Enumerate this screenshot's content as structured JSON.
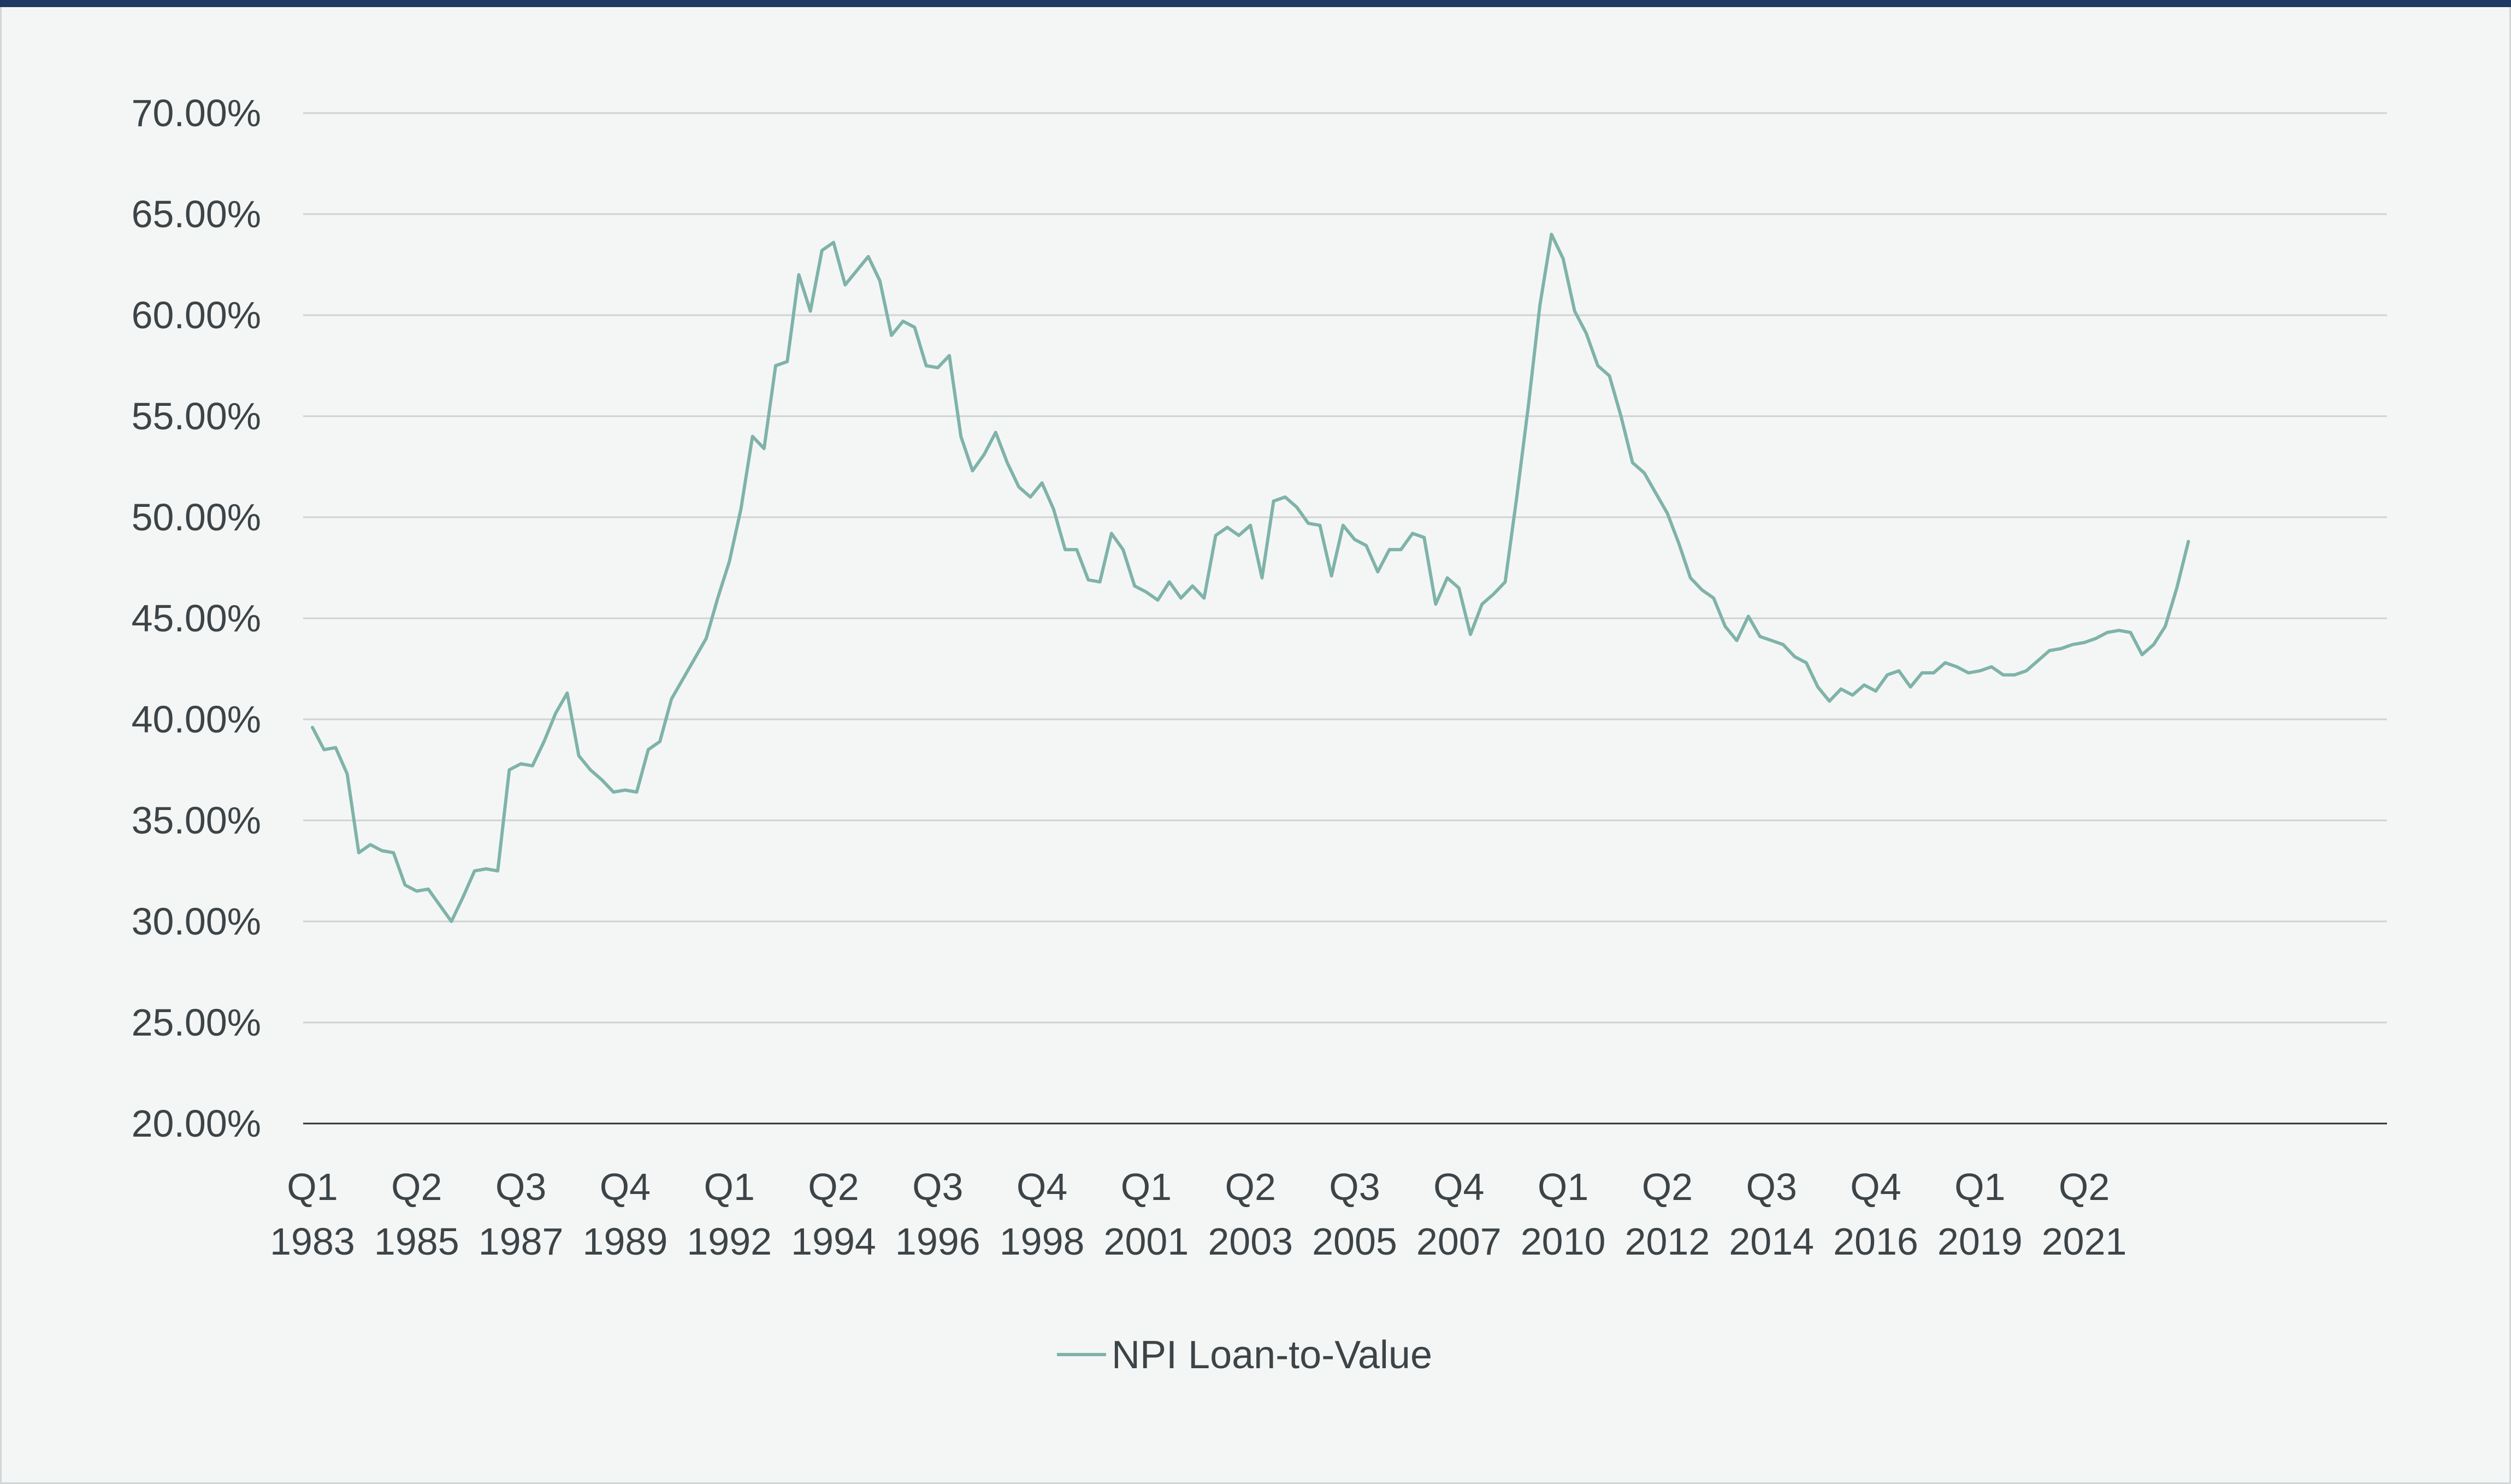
{
  "colors": {
    "accent_bar": "#1f3864",
    "series_line": "#7fb3a9",
    "grid": "#cfd3d3",
    "axis": "#2f3436",
    "text": "#3d4447",
    "background": "#f4f6f5"
  },
  "chart_data": {
    "type": "line",
    "title": "",
    "xlabel": "",
    "ylabel": "",
    "ylim": [
      20,
      70
    ],
    "y_ticks": [
      "20.00%",
      "25.00%",
      "30.00%",
      "35.00%",
      "40.00%",
      "45.00%",
      "50.00%",
      "55.00%",
      "60.00%",
      "65.00%",
      "70.00%"
    ],
    "x_tick_labels": [
      [
        "Q1",
        "1983"
      ],
      [
        "Q2",
        "1985"
      ],
      [
        "Q3",
        "1987"
      ],
      [
        "Q4",
        "1989"
      ],
      [
        "Q1",
        "1992"
      ],
      [
        "Q2",
        "1994"
      ],
      [
        "Q3",
        "1996"
      ],
      [
        "Q4",
        "1998"
      ],
      [
        "Q1",
        "2001"
      ],
      [
        "Q2",
        "2003"
      ],
      [
        "Q3",
        "2005"
      ],
      [
        "Q4",
        "2007"
      ],
      [
        "Q1",
        "2010"
      ],
      [
        "Q2",
        "2012"
      ],
      [
        "Q3",
        "2014"
      ],
      [
        "Q4",
        "2016"
      ],
      [
        "Q1",
        "2019"
      ],
      [
        "Q2",
        "2021"
      ]
    ],
    "grid": true,
    "legend_position": "bottom-center",
    "x_start": "Q1 1983",
    "x_frequency": "quarterly",
    "series": [
      {
        "name": "NPI Loan-to-Value",
        "values": [
          39.6,
          38.5,
          38.6,
          37.3,
          33.4,
          33.8,
          33.5,
          33.4,
          31.8,
          31.5,
          31.6,
          30.8,
          30.0,
          31.2,
          32.5,
          32.6,
          32.5,
          37.5,
          37.8,
          37.7,
          38.9,
          40.3,
          41.3,
          38.2,
          37.5,
          37.0,
          36.4,
          36.5,
          36.4,
          38.5,
          38.9,
          41.0,
          42.0,
          43.0,
          44.0,
          46.0,
          47.8,
          50.4,
          54.0,
          53.4,
          57.5,
          57.7,
          62.0,
          60.2,
          63.2,
          63.6,
          61.5,
          62.2,
          62.9,
          61.7,
          59.0,
          59.7,
          59.4,
          57.5,
          57.4,
          58.0,
          54.0,
          52.3,
          53.1,
          54.2,
          52.7,
          51.5,
          51.0,
          51.7,
          50.4,
          48.4,
          48.4,
          46.9,
          46.8,
          49.2,
          48.4,
          46.6,
          46.3,
          45.9,
          46.8,
          46.0,
          46.6,
          46.0,
          49.1,
          49.5,
          49.1,
          49.6,
          47.0,
          50.8,
          51.0,
          50.5,
          49.7,
          49.6,
          47.1,
          49.6,
          48.9,
          48.6,
          47.3,
          48.4,
          48.4,
          49.2,
          49.0,
          45.7,
          47.0,
          46.5,
          44.2,
          45.7,
          46.2,
          46.8,
          51.0,
          55.5,
          60.5,
          64.0,
          62.8,
          60.2,
          59.1,
          57.5,
          57.0,
          55.0,
          52.7,
          52.2,
          51.2,
          50.2,
          48.7,
          47.0,
          46.4,
          46.0,
          44.6,
          43.9,
          45.1,
          44.1,
          43.9,
          43.7,
          43.1,
          42.8,
          41.6,
          40.9,
          41.5,
          41.2,
          41.7,
          41.4,
          42.2,
          42.4,
          41.6,
          42.3,
          42.3,
          42.8,
          42.6,
          42.3,
          42.4,
          42.6,
          42.2,
          42.2,
          42.4,
          42.9,
          43.4,
          43.5,
          43.7,
          43.8,
          44.0,
          44.3,
          44.4,
          44.3,
          43.2,
          43.7,
          44.6,
          46.5,
          48.8
        ]
      }
    ]
  }
}
